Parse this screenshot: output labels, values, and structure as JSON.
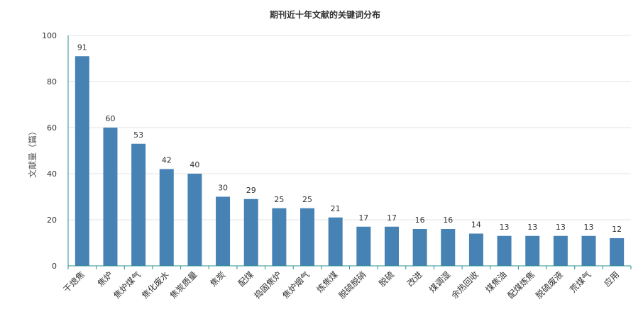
{
  "chart_data": {
    "type": "bar",
    "title": "期刊近十年文献的关键词分布",
    "xlabel": "",
    "ylabel": "文献量（篇）",
    "ylim": [
      0,
      100
    ],
    "yticks": [
      0,
      20,
      40,
      60,
      80,
      100
    ],
    "grid": true,
    "legend": "none",
    "bar_color": "#4682B4",
    "categories": [
      "干熄焦",
      "焦炉",
      "焦炉煤气",
      "焦化废水",
      "焦炭质量",
      "焦炭",
      "配煤",
      "捣固焦炉",
      "焦炉烟气",
      "炼焦煤",
      "脱硫脱硝",
      "脱硫",
      "改进",
      "煤调湿",
      "余热回收",
      "煤焦油",
      "配煤炼焦",
      "脱硫废液",
      "荒煤气",
      "应用"
    ],
    "values": [
      91,
      60,
      53,
      42,
      40,
      30,
      29,
      25,
      25,
      21,
      17,
      17,
      16,
      16,
      14,
      13,
      13,
      13,
      13,
      12
    ]
  }
}
